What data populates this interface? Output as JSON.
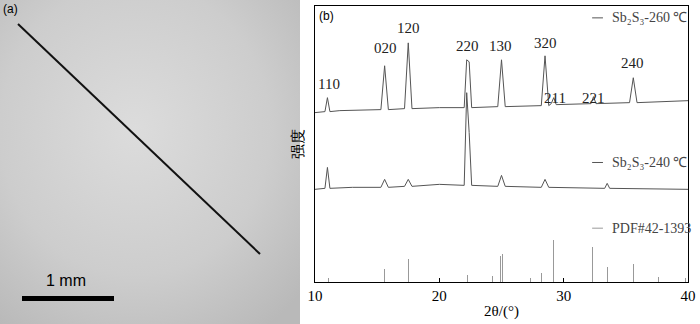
{
  "chart_data": [
    {
      "type": "image",
      "label": "(a)",
      "scale_bar": {
        "label": "1 mm"
      }
    },
    {
      "type": "line",
      "label": "(b)",
      "x_label": "2θ/(°)",
      "y_label": "强度",
      "xlim": [
        10,
        40
      ],
      "xticks": [
        10,
        20,
        30,
        40
      ],
      "ylim": [
        0,
        277
      ],
      "tick_labels": "x",
      "grid": false,
      "series": [
        {
          "name": "Sb₂S₃-260 ℃",
          "color": "#555555",
          "type": "line",
          "x": [
            10,
            10.8,
            11,
            11.2,
            12,
            15.3,
            15.6,
            15.9,
            17.2,
            17.5,
            17.8,
            20,
            22,
            22.2,
            22.4,
            22.6,
            24.7,
            25,
            25.3,
            28.2,
            28.5,
            28.8,
            29,
            29.2,
            29.4,
            32.2,
            32.4,
            32.6,
            35.3,
            35.6,
            35.9,
            38,
            40
          ],
          "values": [
            170,
            171,
            185,
            171,
            172,
            173,
            217,
            173,
            174,
            240,
            174,
            175,
            175,
            223,
            221,
            175,
            176,
            223,
            176,
            177,
            227,
            177,
            179,
            185,
            178,
            179,
            186,
            179,
            180,
            205,
            180,
            181,
            182
          ]
        },
        {
          "name": "Sb₂S₃-240 ℃",
          "color": "#555555",
          "type": "line",
          "x": [
            10,
            10.8,
            11,
            11.2,
            13,
            15.3,
            15.6,
            15.9,
            17.2,
            17.5,
            17.8,
            20,
            22,
            22.2,
            22.4,
            22.6,
            24.7,
            25,
            25.3,
            28.2,
            28.5,
            28.8,
            33.3,
            33.5,
            33.7,
            40
          ],
          "values": [
            93,
            94,
            115,
            94,
            95,
            95,
            103,
            95,
            96,
            103,
            96,
            98,
            97,
            190,
            150,
            97,
            96,
            107,
            96,
            95,
            103,
            95,
            94,
            99,
            94,
            93
          ]
        },
        {
          "name": "PDF#42-1393",
          "color": "#999999",
          "type": "bar",
          "x": [
            11.1,
            15.6,
            17.5,
            22.3,
            24.3,
            24.9,
            25.1,
            25.6,
            27.3,
            28.2,
            28.5,
            29.2,
            32.3,
            33.5,
            35.6,
            37.6,
            39.8
          ],
          "values": [
            4,
            13,
            23,
            7,
            6,
            26,
            28,
            6,
            4,
            9,
            12,
            42,
            35,
            15,
            18,
            5,
            4
          ]
        }
      ],
      "annotations": [
        {
          "text": "110",
          "x": 11.1,
          "y": 199
        },
        {
          "text": "020",
          "x": 15.7,
          "y": 235
        },
        {
          "text": "120",
          "x": 17.5,
          "y": 255
        },
        {
          "text": "220",
          "x": 22.3,
          "y": 237
        },
        {
          "text": "130",
          "x": 24.9,
          "y": 237
        },
        {
          "text": "320",
          "x": 28.5,
          "y": 240
        },
        {
          "text": "211",
          "x": 29.3,
          "y": 185
        },
        {
          "text": "221",
          "x": 32.4,
          "y": 185
        },
        {
          "text": "240",
          "x": 35.5,
          "y": 220
        }
      ]
    }
  ]
}
